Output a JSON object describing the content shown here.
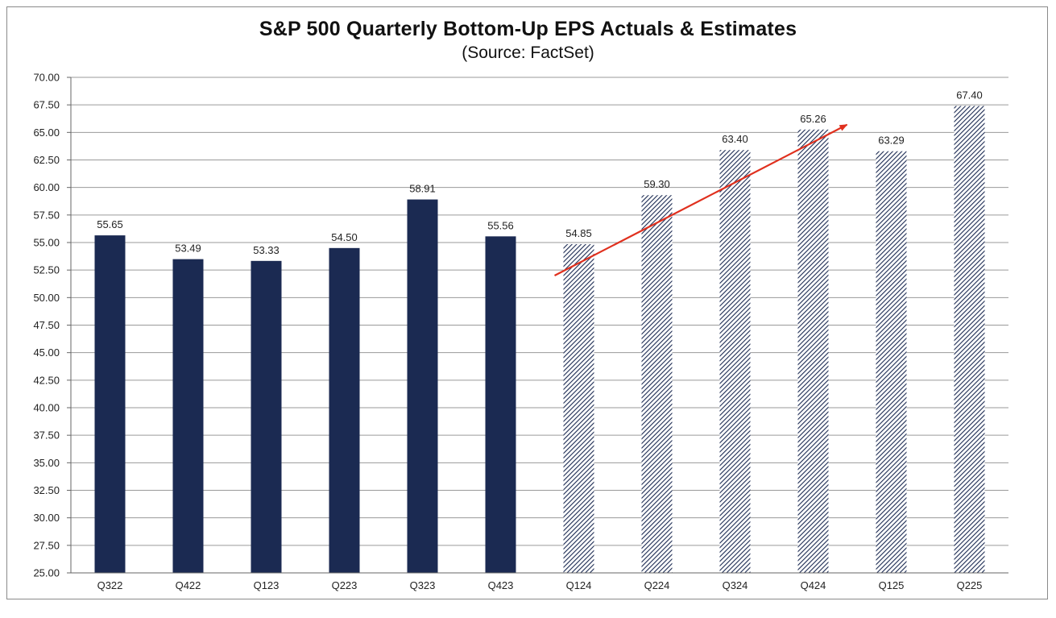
{
  "chart_data": {
    "type": "bar",
    "title": "S&P 500 Quarterly Bottom-Up EPS Actuals & Estimates",
    "subtitle": "(Source: FactSet)",
    "categories": [
      "Q322",
      "Q422",
      "Q123",
      "Q223",
      "Q323",
      "Q423",
      "Q124",
      "Q224",
      "Q324",
      "Q424",
      "Q125",
      "Q225"
    ],
    "values": [
      55.65,
      53.49,
      53.33,
      54.5,
      58.91,
      55.56,
      54.85,
      59.3,
      63.4,
      65.26,
      63.29,
      67.4
    ],
    "value_labels": [
      "55.65",
      "53.49",
      "53.33",
      "54.50",
      "58.91",
      "55.56",
      "54.85",
      "59.30",
      "63.40",
      "65.26",
      "63.29",
      "67.40"
    ],
    "bar_style": [
      "actual",
      "actual",
      "actual",
      "actual",
      "actual",
      "actual",
      "estimate",
      "estimate",
      "estimate",
      "estimate",
      "estimate",
      "estimate"
    ],
    "ylim": [
      25,
      70
    ],
    "yticks": [
      "25.00",
      "27.50",
      "30.00",
      "32.50",
      "35.00",
      "37.50",
      "40.00",
      "42.50",
      "45.00",
      "47.50",
      "50.00",
      "52.50",
      "55.00",
      "57.50",
      "60.00",
      "62.50",
      "65.00",
      "67.50",
      "70.00"
    ],
    "xlabel": "",
    "ylabel": "",
    "grid": true,
    "legend": "none",
    "annotations": [
      {
        "type": "arrow",
        "from": {
          "x": "Q124",
          "y": 52.0
        },
        "to": {
          "x": "Q424",
          "y": 65.7
        },
        "color": "#e0301e"
      }
    ],
    "colors": {
      "actual": "#1b2a52",
      "estimate_hatch": "#1b2a52",
      "grid": "#9a9a9a",
      "arrow": "#e0301e"
    }
  }
}
